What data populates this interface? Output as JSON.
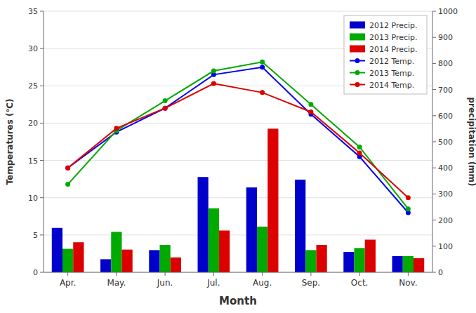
{
  "chart_data": {
    "type": "bar",
    "xlabel": "Month",
    "ylabel": "Temperatures (℃)",
    "y2label": "precipitation (mm)",
    "categories": [
      "Apr.",
      "May.",
      "Jun.",
      "Jul.",
      "Aug.",
      "Sep.",
      "Oct.",
      "Nov."
    ],
    "series": [
      {
        "name": "2012 Precip.",
        "type": "bar",
        "axis": "y2",
        "color": "#0000cc",
        "values": [
          170.0,
          50.0,
          85.0,
          365.0,
          325.0,
          355.0,
          78.0,
          62.0
        ]
      },
      {
        "name": "2013 Precip.",
        "type": "bar",
        "axis": "y2",
        "color": "#00aa00",
        "values": [
          90.0,
          155.0,
          105.0,
          245.0,
          175.0,
          85.0,
          93.0,
          62.0
        ]
      },
      {
        "name": "2014 Precip.",
        "type": "bar",
        "axis": "y2",
        "color": "#dd0000",
        "values": [
          115.0,
          87.0,
          57.0,
          160.0,
          550.0,
          105.0,
          125.0,
          54.0
        ]
      },
      {
        "name": "2012 Temp.",
        "type": "line",
        "marker": "circle",
        "line_style": "solid",
        "color": "#0000ee",
        "values": [
          14.0,
          18.8,
          22.0,
          26.5,
          27.5,
          21.2,
          15.5,
          8.0
        ]
      },
      {
        "name": "2013 Temp.",
        "type": "line",
        "marker": "circle",
        "line_style": "solid",
        "color": "#00aa00",
        "values": [
          11.8,
          19.0,
          23.0,
          27.0,
          28.2,
          22.5,
          16.8,
          8.5
        ]
      },
      {
        "name": "2014 Temp.",
        "type": "line",
        "marker": "circle",
        "line_style": "solid",
        "color": "#dd0000",
        "values": [
          14.0,
          19.3,
          22.0,
          25.3,
          24.1,
          21.5,
          16.0,
          10.0
        ]
      }
    ],
    "ylim": [
      0,
      35
    ],
    "yticks": [
      0,
      5,
      10,
      15,
      20,
      25,
      30,
      35
    ],
    "y2lim": [
      0,
      1000
    ],
    "y2ticks": [
      0,
      100,
      200,
      300,
      400,
      500,
      600,
      700,
      800,
      900,
      1000
    ],
    "grid": true,
    "legend": "upper right"
  }
}
